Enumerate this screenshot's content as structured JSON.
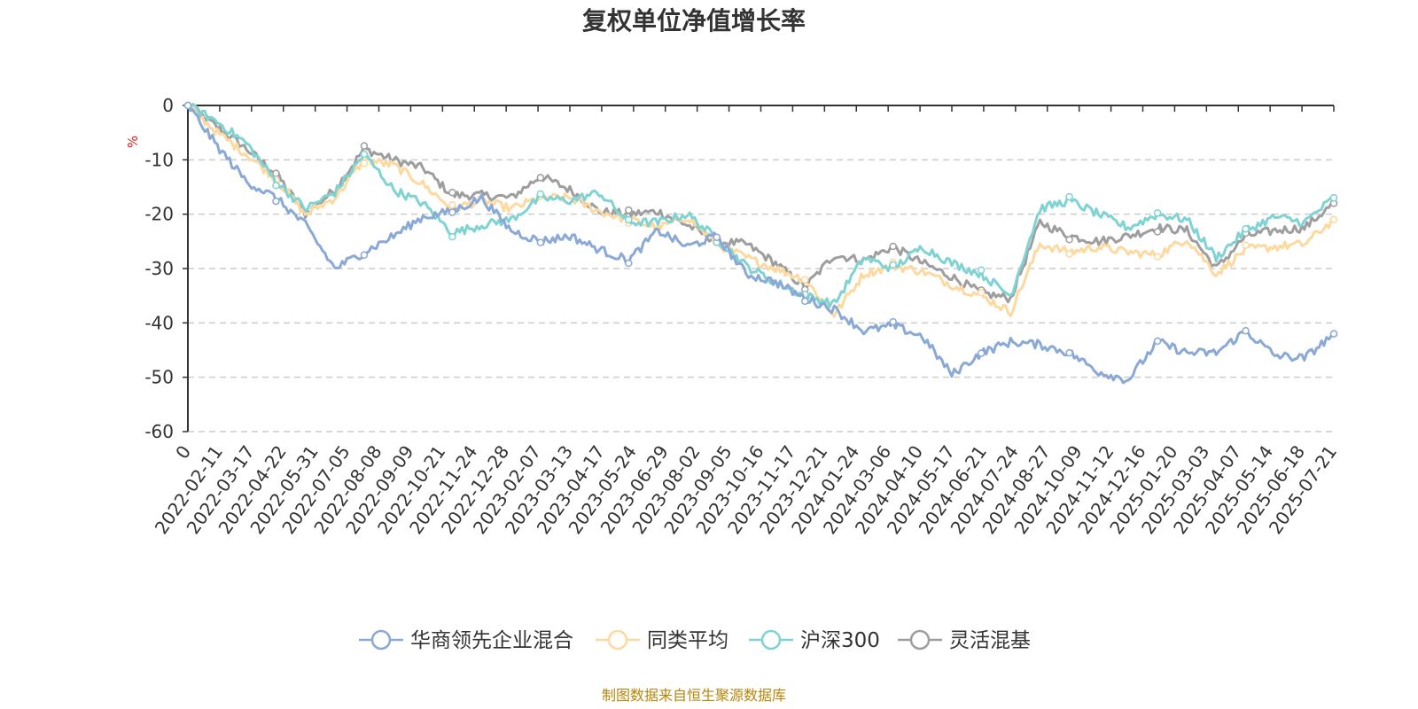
{
  "chart_data": {
    "type": "line",
    "title": "复权单位净值增长率",
    "ylabel": "%",
    "ylim": [
      -60,
      0
    ],
    "y_ticks": [
      "0",
      "-10",
      "-20",
      "-30",
      "-40",
      "-50",
      "-60"
    ],
    "x_ticks": [
      "0",
      "2022-02-11",
      "2022-03-17",
      "2022-04-22",
      "2022-05-31",
      "2022-07-05",
      "2022-08-08",
      "2022-09-09",
      "2022-10-21",
      "2022-11-24",
      "2022-12-28",
      "2023-02-07",
      "2023-03-13",
      "2023-04-17",
      "2023-05-24",
      "2023-06-29",
      "2023-08-02",
      "2023-09-05",
      "2023-10-16",
      "2023-11-17",
      "2023-12-21",
      "2024-01-24",
      "2024-03-06",
      "2024-04-10",
      "2024-05-17",
      "2024-06-21",
      "2024-07-24",
      "2024-08-27",
      "2024-10-09",
      "2024-11-12",
      "2024-12-16",
      "2025-01-20",
      "2025-03-03",
      "2025-04-07",
      "2025-05-14",
      "2025-06-18",
      "2025-07-21"
    ],
    "grid": "horizontal-dashed",
    "legend_position": "bottom",
    "series": [
      {
        "name": "华商领先企业混合",
        "color": "#8aa9d6",
        "values": [
          0,
          -7.5,
          -14,
          -17,
          -22,
          -30,
          -27,
          -24,
          -20.5,
          -19.5,
          -17,
          -23,
          -25,
          -24,
          -26.5,
          -28.5,
          -23,
          -26,
          -24,
          -31,
          -32.5,
          -35.5,
          -37.5,
          -41.5,
          -40.5,
          -42.5,
          -49.5,
          -45.5,
          -43.5,
          -44,
          -45.5,
          -49,
          -50.5,
          -43.5,
          -45.5,
          -45.5,
          -41.5,
          -46,
          -46.5,
          -42
        ]
      },
      {
        "name": "同类平均",
        "color": "#fdd9a0",
        "values": [
          0,
          -5,
          -9,
          -13.5,
          -20,
          -17,
          -10,
          -11,
          -14.5,
          -19,
          -17.5,
          -19,
          -17,
          -17,
          -19.5,
          -21,
          -22.5,
          -20.5,
          -25.5,
          -28,
          -30,
          -32,
          -38.5,
          -31,
          -29.5,
          -30.5,
          -33,
          -35,
          -38,
          -25.5,
          -27,
          -26,
          -27,
          -27.5,
          -24.5,
          -31,
          -26.5,
          -26,
          -25.5,
          -21
        ]
      },
      {
        "name": "沪深300",
        "color": "#7fd3d3",
        "values": [
          0,
          -3,
          -7,
          -14,
          -19,
          -16,
          -9,
          -15.5,
          -18,
          -23.5,
          -22,
          -21,
          -17,
          -17.5,
          -16,
          -21.5,
          -21.5,
          -20,
          -24.5,
          -29.5,
          -32.5,
          -35,
          -36.5,
          -28,
          -30,
          -26,
          -29,
          -31,
          -35,
          -19,
          -17.5,
          -20,
          -22.5,
          -20,
          -21,
          -28,
          -23,
          -20.5,
          -21.5,
          -17
        ]
      },
      {
        "name": "灵活混基",
        "color": "#9e9e9e",
        "values": [
          0,
          -4,
          -8,
          -12.5,
          -20,
          -15.5,
          -8,
          -10,
          -11.5,
          -16.5,
          -16.5,
          -17,
          -13,
          -15.5,
          -19.5,
          -20,
          -19.5,
          -22,
          -25,
          -25.5,
          -29,
          -33.5,
          -27.5,
          -28.5,
          -26,
          -29,
          -31.5,
          -34.5,
          -35.5,
          -21.5,
          -24,
          -25,
          -24,
          -22.5,
          -23,
          -30,
          -24,
          -23,
          -22.5,
          -18
        ]
      }
    ]
  },
  "footer": {
    "source": "制图数据来自恒生聚源数据库"
  }
}
